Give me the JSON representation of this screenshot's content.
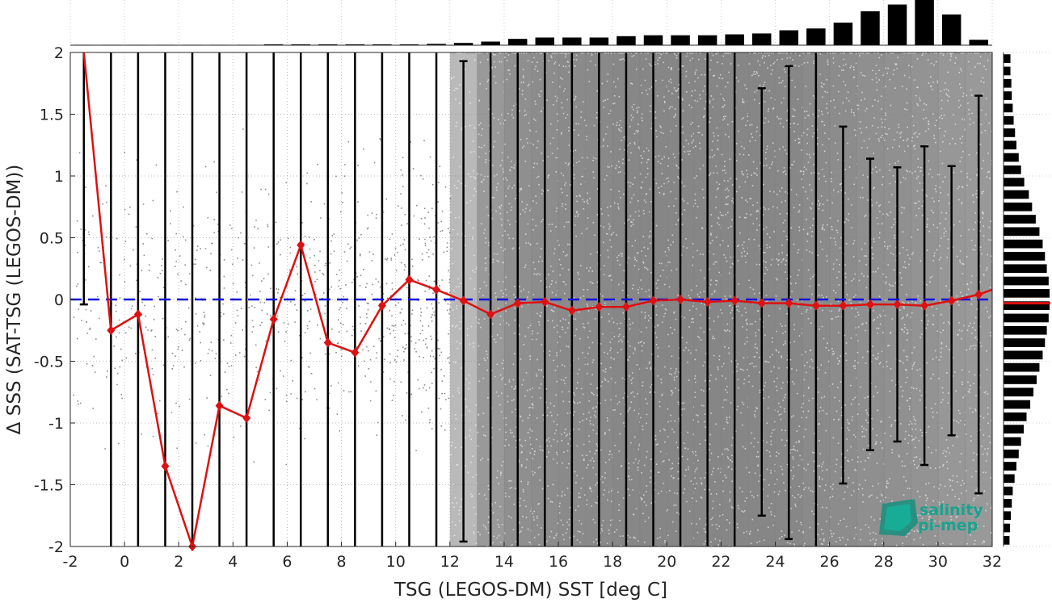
{
  "chart_data": {
    "type": "scatter",
    "xlabel": "TSG (LEGOS-DM) SST [deg C]",
    "ylabel": "Δ SSS (SAT-TSG (LEGOS-DM))",
    "xlim": [
      -2,
      32
    ],
    "ylim": [
      -2,
      2
    ],
    "xticks": [
      "-2",
      "0",
      "2",
      "4",
      "6",
      "8",
      "10",
      "12",
      "14",
      "16",
      "18",
      "20",
      "22",
      "24",
      "26",
      "28",
      "30",
      "32"
    ],
    "yticks": [
      "-2",
      "-1.5",
      "-1",
      "-0.5",
      "0",
      "0.5",
      "1",
      "1.5",
      "2"
    ],
    "reference_line": {
      "y": 0,
      "style": "dashed",
      "color": "#1111dd"
    },
    "binned_mean": {
      "color": "#dd1111",
      "x": [
        -1.5,
        -0.5,
        0.5,
        1.5,
        2.5,
        3.5,
        4.5,
        5.5,
        6.5,
        7.5,
        8.5,
        9.5,
        10.5,
        11.5,
        12.5,
        13.5,
        14.5,
        15.5,
        16.5,
        17.5,
        18.5,
        19.5,
        20.5,
        21.5,
        22.5,
        23.5,
        24.5,
        25.5,
        26.5,
        27.5,
        28.5,
        29.5,
        30.5,
        31.5,
        32.0
      ],
      "y": [
        2.1,
        -0.25,
        -0.12,
        -1.35,
        -2.0,
        -0.86,
        -0.96,
        -0.16,
        0.44,
        -0.35,
        -0.43,
        -0.05,
        0.16,
        0.08,
        -0.01,
        -0.12,
        -0.03,
        -0.02,
        -0.09,
        -0.06,
        -0.06,
        -0.01,
        0.0,
        -0.02,
        -0.01,
        -0.03,
        -0.03,
        -0.05,
        -0.05,
        -0.04,
        -0.04,
        -0.05,
        -0.01,
        0.04,
        0.08
      ]
    },
    "error_bars": {
      "color": "#000000",
      "x": [
        -1.5,
        -0.5,
        0.5,
        1.5,
        2.5,
        3.5,
        4.5,
        5.5,
        6.5,
        7.5,
        8.5,
        9.5,
        10.5,
        11.5,
        12.5,
        13.5,
        14.5,
        15.5,
        16.5,
        17.5,
        18.5,
        19.5,
        20.5,
        21.5,
        22.5,
        23.5,
        24.5,
        25.5,
        26.5,
        27.5,
        28.5,
        29.5,
        30.5,
        31.5
      ],
      "low": [
        -0.04,
        -2,
        -2,
        -2,
        -2,
        -2,
        -2,
        -2,
        -2,
        -2,
        -2,
        -2,
        -2,
        -2,
        -1.96,
        -2,
        -2,
        -2,
        -2,
        -2,
        -2,
        -2,
        -2,
        -2,
        -2,
        -1.75,
        -1.94,
        -2,
        -1.49,
        -1.22,
        -1.15,
        -1.34,
        -1.1,
        -1.57
      ],
      "high": [
        2,
        2,
        2,
        2,
        2,
        2,
        2,
        2,
        2,
        2,
        2,
        2,
        2,
        2,
        1.93,
        2,
        2,
        2,
        2,
        2,
        2,
        2,
        2,
        2,
        2,
        1.71,
        1.89,
        2,
        1.4,
        1.14,
        1.07,
        1.24,
        1.08,
        1.65
      ]
    },
    "scatter": {
      "color": "#808080",
      "density_by_sst_bin": [
        0.005,
        0.008,
        0.012,
        0.015,
        0.02,
        0.025,
        0.03,
        0.04,
        0.06,
        0.08,
        0.1,
        0.13,
        0.18,
        0.3,
        0.55,
        0.8,
        0.88,
        0.9,
        0.92,
        0.93,
        0.94,
        0.95,
        0.95,
        0.95,
        0.95,
        0.95,
        0.94,
        0.92,
        0.9,
        0.88,
        0.87,
        0.85,
        0.82,
        0.8
      ]
    },
    "top_histogram": {
      "bin_centers": [
        -1.5,
        -0.5,
        0.5,
        1.5,
        2.5,
        3.5,
        4.5,
        5.5,
        6.5,
        7.5,
        8.5,
        9.5,
        10.5,
        11.5,
        12.5,
        13.5,
        14.5,
        15.5,
        16.5,
        17.5,
        18.5,
        19.5,
        20.5,
        21.5,
        22.5,
        23.5,
        24.5,
        25.5,
        26.5,
        27.5,
        28.5,
        29.5,
        30.5,
        31.5
      ],
      "relative_counts": [
        0.01,
        0.01,
        0.01,
        0.01,
        0.01,
        0.01,
        0.01,
        0.02,
        0.02,
        0.02,
        0.02,
        0.02,
        0.02,
        0.03,
        0.05,
        0.08,
        0.14,
        0.17,
        0.17,
        0.17,
        0.2,
        0.22,
        0.22,
        0.22,
        0.24,
        0.26,
        0.33,
        0.37,
        0.5,
        0.75,
        0.9,
        1.0,
        0.68,
        0.12
      ]
    },
    "right_histogram": {
      "bin_centers": [
        1.95,
        1.85,
        1.75,
        1.65,
        1.55,
        1.45,
        1.35,
        1.25,
        1.15,
        1.05,
        0.95,
        0.85,
        0.75,
        0.65,
        0.55,
        0.45,
        0.35,
        0.25,
        0.15,
        0.05,
        -0.05,
        -0.15,
        -0.25,
        -0.35,
        -0.45,
        -0.55,
        -0.65,
        -0.75,
        -0.85,
        -0.95,
        -1.05,
        -1.15,
        -1.25,
        -1.35,
        -1.45,
        -1.55,
        -1.65,
        -1.75,
        -1.85,
        -1.95
      ],
      "relative_counts": [
        0.15,
        0.15,
        0.17,
        0.18,
        0.2,
        0.22,
        0.25,
        0.28,
        0.33,
        0.38,
        0.45,
        0.55,
        0.62,
        0.7,
        0.78,
        0.85,
        0.9,
        0.94,
        0.98,
        1.0,
        1.0,
        0.98,
        0.94,
        0.9,
        0.85,
        0.78,
        0.72,
        0.65,
        0.58,
        0.5,
        0.44,
        0.38,
        0.33,
        0.28,
        0.24,
        0.2,
        0.18,
        0.16,
        0.14,
        0.13
      ],
      "mean_marker": {
        "y": -0.03,
        "color": "#dd1111"
      }
    },
    "grid": true
  },
  "logo": {
    "line1": "salinity",
    "line2": "pi-mep"
  }
}
